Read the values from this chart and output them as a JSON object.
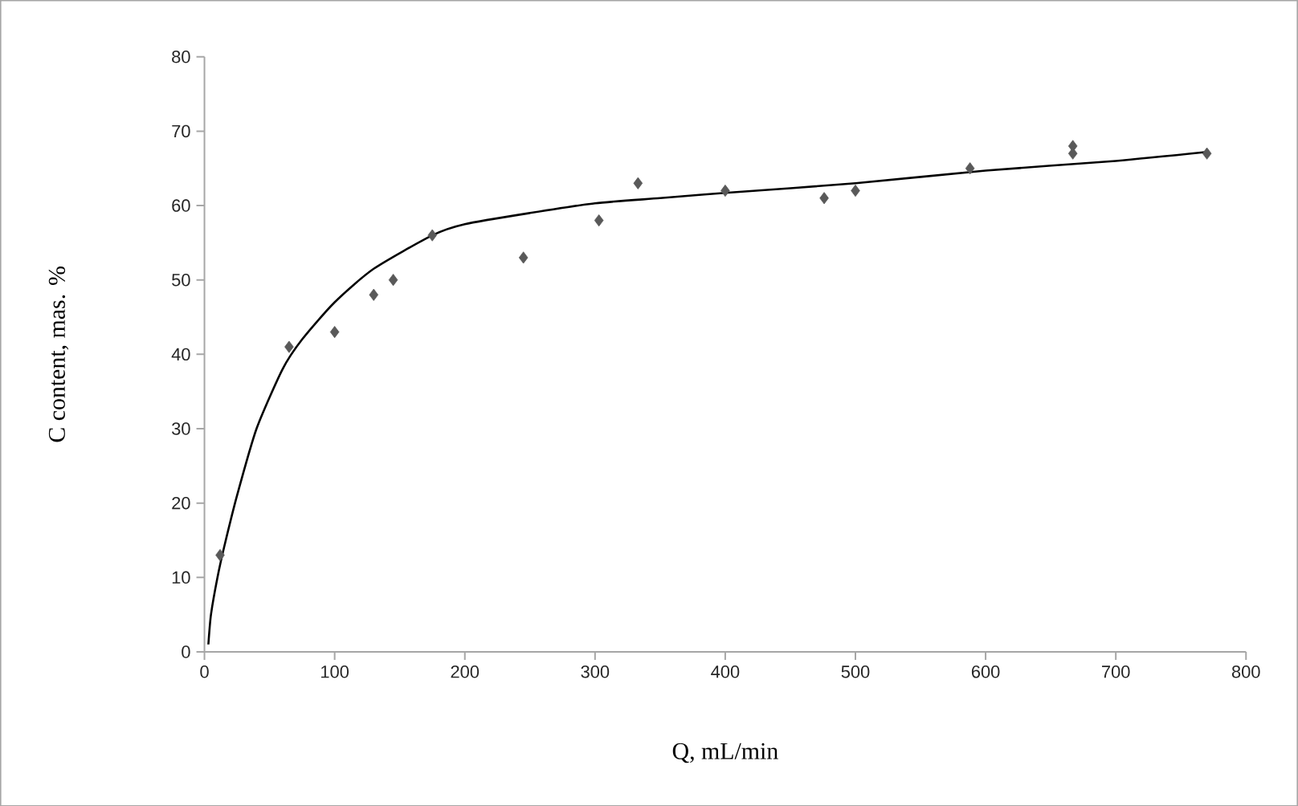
{
  "chart_data": {
    "type": "scatter",
    "xlabel": "Q, mL/min",
    "ylabel": "C content, mas. %",
    "xlim": [
      0,
      800
    ],
    "ylim": [
      0,
      80
    ],
    "xticks": [
      0,
      100,
      200,
      300,
      400,
      500,
      600,
      700,
      800
    ],
    "yticks": [
      0,
      10,
      20,
      30,
      40,
      50,
      60,
      70,
      80
    ],
    "series": [
      {
        "color": "#595959",
        "marker": "diamond",
        "x": [
          12,
          65,
          100,
          130,
          145,
          175,
          245,
          303,
          333,
          400,
          476,
          500,
          588,
          667,
          667,
          770
        ],
        "values": [
          13,
          41,
          43,
          48,
          50,
          56,
          53,
          58,
          63,
          62,
          61,
          62,
          65,
          67,
          68,
          67
        ]
      },
      {
        "type": "line",
        "color": "#000000",
        "marker": "none",
        "line_style": "solid",
        "x": [
          3,
          5,
          10,
          15,
          25,
          40,
          60,
          75,
          100,
          130,
          175,
          200,
          250,
          300,
          350,
          400,
          500,
          600,
          700,
          770
        ],
        "values": [
          1,
          5,
          10,
          14,
          21,
          30,
          38,
          42,
          47,
          51.5,
          56,
          57.5,
          59,
          60.3,
          61,
          61.7,
          63,
          64.7,
          66,
          67.2
        ]
      }
    ]
  }
}
